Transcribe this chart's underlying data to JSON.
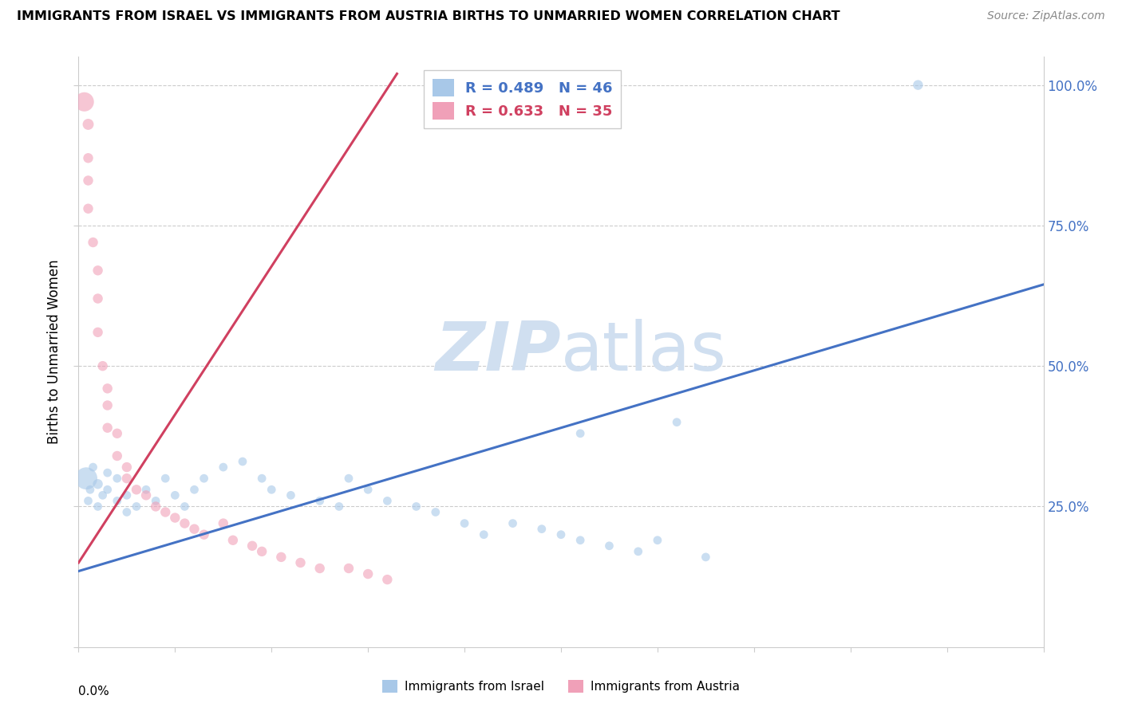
{
  "title": "IMMIGRANTS FROM ISRAEL VS IMMIGRANTS FROM AUSTRIA BIRTHS TO UNMARRIED WOMEN CORRELATION CHART",
  "source": "Source: ZipAtlas.com",
  "ylabel": "Births to Unmarried Women",
  "y_tick_labels_right": [
    "",
    "25.0%",
    "50.0%",
    "75.0%",
    "100.0%"
  ],
  "x_range": [
    0.0,
    0.1
  ],
  "y_range": [
    0.0,
    1.05
  ],
  "legend_israel": "R = 0.489   N = 46",
  "legend_austria": "R = 0.633   N = 35",
  "color_israel": "#a8c8e8",
  "color_austria": "#f0a0b8",
  "line_color_israel": "#4472c4",
  "line_color_austria": "#d04060",
  "watermark_zip": "ZIP",
  "watermark_atlas": "atlas",
  "watermark_color": "#d0dff0",
  "israel_line_x": [
    0.0,
    0.1
  ],
  "israel_line_y": [
    0.135,
    0.645
  ],
  "austria_line_x": [
    0.0,
    0.033
  ],
  "austria_line_y": [
    0.15,
    1.02
  ],
  "israel_x": [
    0.0008,
    0.001,
    0.0012,
    0.0015,
    0.002,
    0.002,
    0.0025,
    0.003,
    0.003,
    0.004,
    0.004,
    0.005,
    0.005,
    0.006,
    0.007,
    0.008,
    0.009,
    0.01,
    0.011,
    0.012,
    0.013,
    0.015,
    0.017,
    0.019,
    0.02,
    0.022,
    0.025,
    0.027,
    0.028,
    0.03,
    0.032,
    0.035,
    0.037,
    0.04,
    0.042,
    0.045,
    0.048,
    0.05,
    0.052,
    0.055,
    0.058,
    0.06,
    0.065,
    0.052,
    0.062,
    0.087
  ],
  "israel_y": [
    0.3,
    0.26,
    0.28,
    0.32,
    0.29,
    0.25,
    0.27,
    0.31,
    0.28,
    0.26,
    0.3,
    0.27,
    0.24,
    0.25,
    0.28,
    0.26,
    0.3,
    0.27,
    0.25,
    0.28,
    0.3,
    0.32,
    0.33,
    0.3,
    0.28,
    0.27,
    0.26,
    0.25,
    0.3,
    0.28,
    0.26,
    0.25,
    0.24,
    0.22,
    0.2,
    0.22,
    0.21,
    0.2,
    0.19,
    0.18,
    0.17,
    0.19,
    0.16,
    0.38,
    0.4,
    1.0
  ],
  "israel_sizes": [
    400,
    60,
    60,
    60,
    80,
    60,
    60,
    60,
    60,
    60,
    60,
    60,
    60,
    60,
    60,
    60,
    60,
    60,
    60,
    60,
    60,
    60,
    60,
    60,
    60,
    60,
    60,
    60,
    60,
    60,
    60,
    60,
    60,
    60,
    60,
    60,
    60,
    60,
    60,
    60,
    60,
    60,
    60,
    60,
    60,
    80
  ],
  "austria_x": [
    0.0006,
    0.001,
    0.001,
    0.001,
    0.001,
    0.0015,
    0.002,
    0.002,
    0.002,
    0.0025,
    0.003,
    0.003,
    0.003,
    0.004,
    0.004,
    0.005,
    0.005,
    0.006,
    0.007,
    0.008,
    0.009,
    0.01,
    0.011,
    0.012,
    0.013,
    0.015,
    0.016,
    0.018,
    0.019,
    0.021,
    0.023,
    0.025,
    0.028,
    0.03,
    0.032
  ],
  "austria_y": [
    0.97,
    0.93,
    0.87,
    0.83,
    0.78,
    0.72,
    0.67,
    0.62,
    0.56,
    0.5,
    0.46,
    0.43,
    0.39,
    0.38,
    0.34,
    0.32,
    0.3,
    0.28,
    0.27,
    0.25,
    0.24,
    0.23,
    0.22,
    0.21,
    0.2,
    0.22,
    0.19,
    0.18,
    0.17,
    0.16,
    0.15,
    0.14,
    0.14,
    0.13,
    0.12
  ],
  "austria_sizes": [
    300,
    100,
    80,
    80,
    80,
    80,
    80,
    80,
    80,
    80,
    80,
    80,
    80,
    80,
    80,
    80,
    80,
    80,
    80,
    80,
    80,
    80,
    80,
    80,
    80,
    80,
    80,
    80,
    80,
    80,
    80,
    80,
    80,
    80,
    80
  ]
}
